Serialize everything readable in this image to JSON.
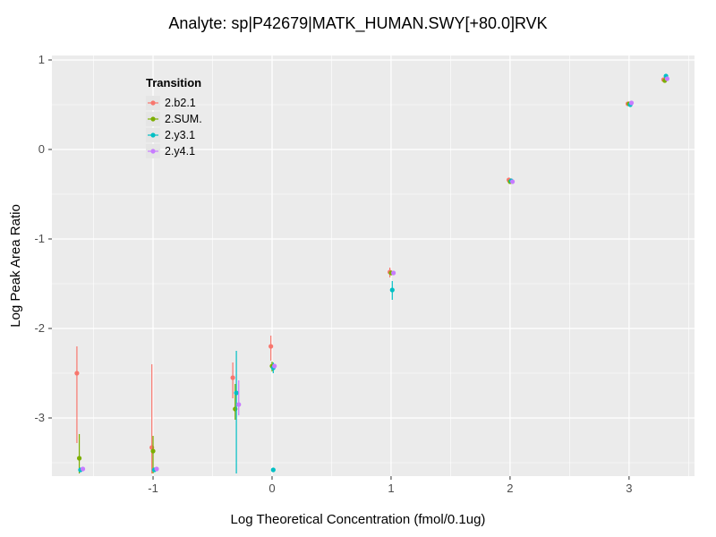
{
  "title": "Analyte: sp|P42679|MATK_HUMAN.SWY[+80.0]RVK",
  "chart_data": {
    "type": "scatter",
    "title": "Analyte: sp|P42679|MATK_HUMAN.SWY[+80.0]RVK",
    "xlabel": "Log Theoretical Concentration (fmol/0.1ug)",
    "ylabel": "Log Peak Area Ratio",
    "xlim": [
      -1.85,
      3.55
    ],
    "ylim": [
      -3.65,
      1.05
    ],
    "xticks": [
      -1,
      0,
      1,
      2,
      3
    ],
    "yticks": [
      -3,
      -2,
      -1,
      0,
      1
    ],
    "minor_step": 0.5,
    "grid": true,
    "panel_bg": "#EBEBEB",
    "grid_color": "#FFFFFF",
    "tick_label_color": "#4D4D4D",
    "legend": {
      "title": "Transition",
      "position": "inside-top-left",
      "entries": [
        "2.b2.1",
        "2.SUM.",
        "2.y3.1",
        "2.y4.1"
      ]
    },
    "series": [
      {
        "name": "2.b2.1",
        "color": "#F8766D",
        "points": [
          {
            "x": -1.64,
            "y": -2.5,
            "lo": -3.28,
            "hi": -2.2
          },
          {
            "x": -1.01,
            "y": -3.33,
            "lo": -3.62,
            "hi": -2.4
          },
          {
            "x": -0.33,
            "y": -2.55,
            "lo": -2.78,
            "hi": -2.38
          },
          {
            "x": -0.01,
            "y": -2.2,
            "lo": -2.36,
            "hi": -2.08
          },
          {
            "x": 0.99,
            "y": -1.37,
            "lo": -1.43,
            "hi": -1.32
          },
          {
            "x": 1.99,
            "y": -0.34
          },
          {
            "x": 2.99,
            "y": 0.51
          },
          {
            "x": 3.29,
            "y": 0.78
          }
        ]
      },
      {
        "name": "2.SUM.",
        "color": "#7CAE00",
        "points": [
          {
            "x": -1.62,
            "y": -3.45,
            "lo": -3.62,
            "hi": -3.18
          },
          {
            "x": -1.0,
            "y": -3.37,
            "lo": -3.62,
            "hi": -3.2
          },
          {
            "x": -0.31,
            "y": -2.9,
            "lo": -3.02,
            "hi": -2.62
          },
          {
            "x": 0.0,
            "y": -2.42,
            "lo": -2.48,
            "hi": -2.37
          },
          {
            "x": 1.0,
            "y": -1.38
          },
          {
            "x": 2.0,
            "y": -0.36
          },
          {
            "x": 3.0,
            "y": 0.51
          },
          {
            "x": 3.3,
            "y": 0.77
          }
        ]
      },
      {
        "name": "2.y3.1",
        "color": "#00BFC4",
        "points": [
          {
            "x": -1.61,
            "y": -3.58
          },
          {
            "x": -0.99,
            "y": -3.58
          },
          {
            "x": -0.3,
            "y": -2.72,
            "lo": -3.62,
            "hi": -2.25
          },
          {
            "x": 0.01,
            "y": -2.44,
            "lo": -2.5,
            "hi": -2.38
          },
          {
            "x": 0.01,
            "y": -3.58
          },
          {
            "x": 1.01,
            "y": -1.57,
            "lo": -1.68,
            "hi": -1.47
          },
          {
            "x": 2.01,
            "y": -0.35
          },
          {
            "x": 3.01,
            "y": 0.5
          },
          {
            "x": 3.31,
            "y": 0.82
          }
        ]
      },
      {
        "name": "2.y4.1",
        "color": "#C77CFF",
        "points": [
          {
            "x": -1.59,
            "y": -3.57
          },
          {
            "x": -0.97,
            "y": -3.57
          },
          {
            "x": -0.28,
            "y": -2.85,
            "lo": -2.97,
            "hi": -2.58
          },
          {
            "x": 0.02,
            "y": -2.42
          },
          {
            "x": 1.02,
            "y": -1.38
          },
          {
            "x": 2.02,
            "y": -0.36
          },
          {
            "x": 3.02,
            "y": 0.52
          },
          {
            "x": 3.32,
            "y": 0.79
          }
        ]
      }
    ]
  }
}
